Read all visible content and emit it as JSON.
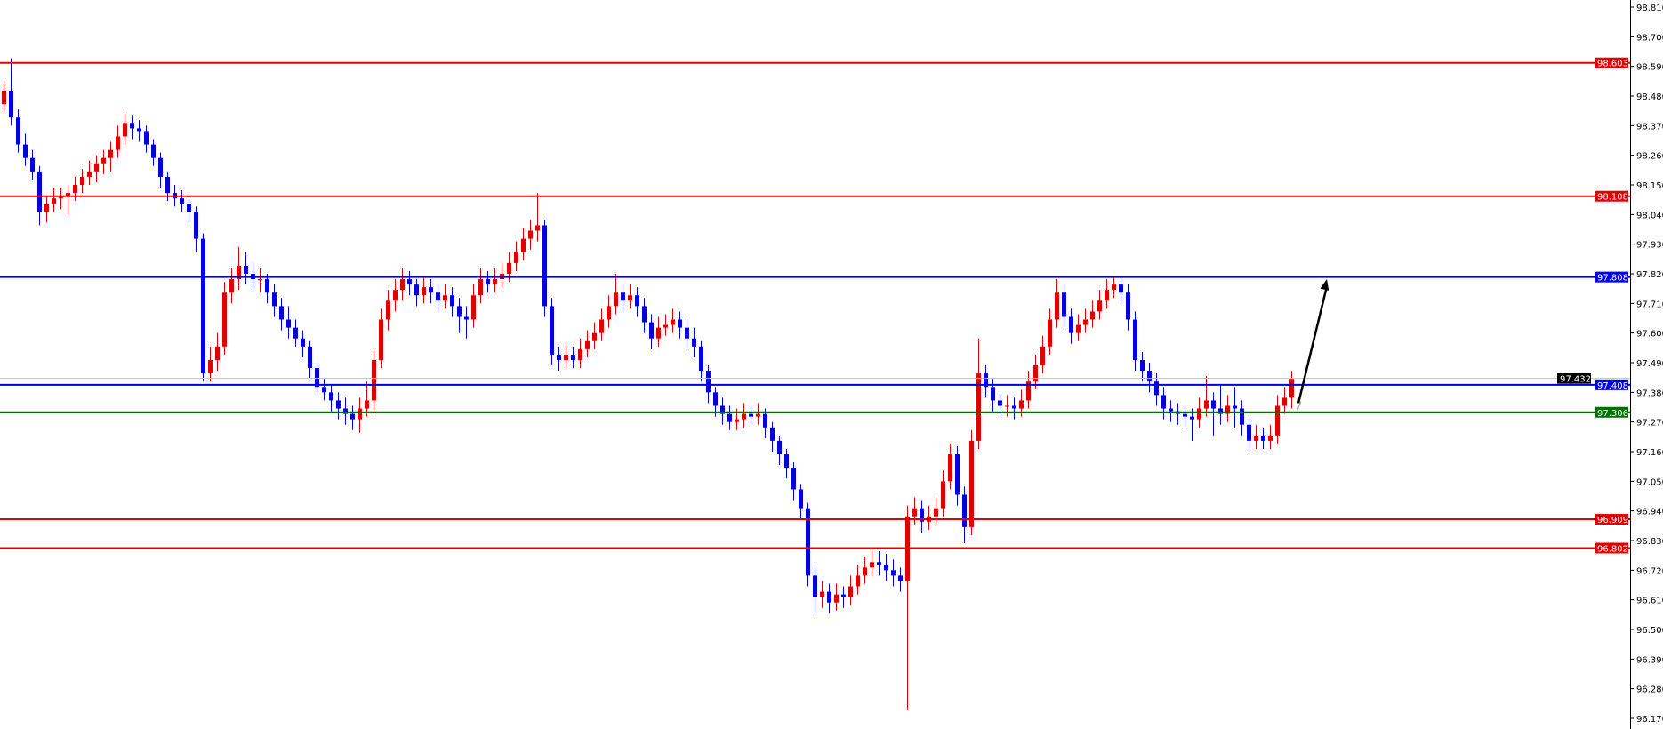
{
  "chart_data": {
    "type": "candlestick",
    "title": "",
    "xlabel": "",
    "ylabel": "",
    "ylim": [
      96.17,
      98.81
    ],
    "y_ticks": [
      "98.810",
      "98.700",
      "98.590",
      "98.480",
      "98.370",
      "98.260",
      "98.150",
      "98.040",
      "97.930",
      "97.820",
      "97.710",
      "97.600",
      "97.490",
      "97.380",
      "97.270",
      "97.160",
      "97.050",
      "96.940",
      "96.830",
      "96.720",
      "96.610",
      "96.500",
      "96.390",
      "96.280",
      "96.170"
    ],
    "grid": false,
    "colors": {
      "up": "#e00000",
      "down": "#0000e0",
      "axis": "#000000",
      "bid_line": "#c0c0c0"
    },
    "horizontal_lines": [
      {
        "price": 98.603,
        "label": "98.603",
        "color": "#e00000"
      },
      {
        "price": 98.108,
        "label": "98.108",
        "color": "#e00000"
      },
      {
        "price": 97.808,
        "label": "97.808",
        "color": "#0000e0"
      },
      {
        "price": 97.408,
        "label": "97.408",
        "color": "#0000e0"
      },
      {
        "price": 97.306,
        "label": "97.306",
        "color": "#007000"
      },
      {
        "price": 96.909,
        "label": "96.909",
        "color": "#e00000"
      },
      {
        "price": 96.802,
        "label": "96.802",
        "color": "#e00000"
      }
    ],
    "bid": {
      "price": 97.432,
      "label": "97.432",
      "color": "#000000"
    },
    "arrow": {
      "from": {
        "index": 182,
        "price": 97.34
      },
      "to": {
        "index": 186,
        "price": 97.8
      },
      "color": "#000000"
    },
    "candles_ohlc": [
      [
        98.45,
        98.53,
        98.42,
        98.5
      ],
      [
        98.5,
        98.62,
        98.37,
        98.4
      ],
      [
        98.4,
        98.43,
        98.27,
        98.3
      ],
      [
        98.3,
        98.34,
        98.22,
        98.25
      ],
      [
        98.25,
        98.28,
        98.17,
        98.2
      ],
      [
        98.2,
        98.22,
        98.0,
        98.05
      ],
      [
        98.05,
        98.11,
        98.01,
        98.08
      ],
      [
        98.08,
        98.14,
        98.05,
        98.1
      ],
      [
        98.1,
        98.14,
        98.06,
        98.11
      ],
      [
        98.11,
        98.15,
        98.04,
        98.12
      ],
      [
        98.12,
        98.18,
        98.09,
        98.15
      ],
      [
        98.15,
        98.21,
        98.12,
        98.18
      ],
      [
        98.18,
        98.24,
        98.15,
        98.2
      ],
      [
        98.2,
        98.26,
        98.16,
        98.23
      ],
      [
        98.23,
        98.28,
        98.19,
        98.25
      ],
      [
        98.25,
        98.31,
        98.2,
        98.28
      ],
      [
        98.28,
        98.37,
        98.25,
        98.33
      ],
      [
        98.33,
        98.42,
        98.3,
        98.38
      ],
      [
        98.38,
        98.41,
        98.32,
        98.36
      ],
      [
        98.36,
        98.39,
        98.31,
        98.35
      ],
      [
        98.35,
        98.37,
        98.27,
        98.3
      ],
      [
        98.3,
        98.32,
        98.22,
        98.25
      ],
      [
        98.25,
        98.27,
        98.14,
        98.18
      ],
      [
        98.18,
        98.2,
        98.09,
        98.12
      ],
      [
        98.12,
        98.15,
        98.07,
        98.1
      ],
      [
        98.1,
        98.13,
        98.05,
        98.08
      ],
      [
        98.08,
        98.1,
        98.01,
        98.05
      ],
      [
        98.05,
        98.07,
        97.9,
        97.95
      ],
      [
        97.95,
        97.97,
        97.42,
        97.45
      ],
      [
        97.45,
        97.55,
        97.42,
        97.5
      ],
      [
        97.5,
        97.6,
        97.46,
        97.55
      ],
      [
        97.55,
        97.79,
        97.52,
        97.75
      ],
      [
        97.75,
        97.84,
        97.71,
        97.8
      ],
      [
        97.8,
        97.92,
        97.76,
        97.85
      ],
      [
        97.85,
        97.9,
        97.78,
        97.82
      ],
      [
        97.82,
        97.86,
        97.76,
        97.8
      ],
      [
        97.8,
        97.84,
        97.75,
        97.8
      ],
      [
        97.8,
        97.82,
        97.71,
        97.75
      ],
      [
        97.75,
        97.78,
        97.66,
        97.7
      ],
      [
        97.7,
        97.73,
        97.61,
        97.65
      ],
      [
        97.65,
        97.7,
        97.58,
        97.62
      ],
      [
        97.62,
        97.65,
        97.55,
        97.58
      ],
      [
        97.58,
        97.61,
        97.51,
        97.55
      ],
      [
        97.55,
        97.57,
        97.43,
        97.47
      ],
      [
        97.47,
        97.49,
        97.37,
        97.4
      ],
      [
        97.4,
        97.43,
        97.35,
        97.38
      ],
      [
        97.38,
        97.41,
        97.31,
        97.35
      ],
      [
        97.35,
        97.38,
        97.28,
        97.32
      ],
      [
        97.32,
        97.36,
        97.26,
        97.3
      ],
      [
        97.3,
        97.33,
        97.24,
        97.28
      ],
      [
        97.28,
        97.36,
        97.23,
        97.32
      ],
      [
        97.32,
        97.42,
        97.29,
        97.35
      ],
      [
        97.35,
        97.54,
        97.3,
        97.5
      ],
      [
        97.5,
        97.69,
        97.47,
        97.65
      ],
      [
        97.65,
        97.76,
        97.61,
        97.72
      ],
      [
        97.72,
        97.8,
        97.68,
        97.76
      ],
      [
        97.76,
        97.84,
        97.72,
        97.8
      ],
      [
        97.8,
        97.83,
        97.74,
        97.78
      ],
      [
        97.78,
        97.8,
        97.7,
        97.74
      ],
      [
        97.74,
        97.81,
        97.71,
        97.77
      ],
      [
        97.77,
        97.8,
        97.71,
        97.75
      ],
      [
        97.75,
        97.78,
        97.68,
        97.72
      ],
      [
        97.72,
        97.78,
        97.69,
        97.74
      ],
      [
        97.74,
        97.77,
        97.66,
        97.7
      ],
      [
        97.7,
        97.73,
        97.6,
        97.66
      ],
      [
        97.66,
        97.7,
        97.58,
        97.65
      ],
      [
        97.65,
        97.78,
        97.62,
        97.74
      ],
      [
        97.74,
        97.84,
        97.71,
        97.8
      ],
      [
        97.8,
        97.83,
        97.75,
        97.78
      ],
      [
        97.78,
        97.84,
        97.75,
        97.8
      ],
      [
        97.8,
        97.86,
        97.77,
        97.82
      ],
      [
        97.82,
        97.9,
        97.79,
        97.86
      ],
      [
        97.86,
        97.94,
        97.83,
        97.9
      ],
      [
        97.9,
        97.99,
        97.87,
        97.95
      ],
      [
        97.95,
        98.02,
        97.91,
        97.98
      ],
      [
        97.98,
        98.12,
        97.94,
        98.0
      ],
      [
        98.0,
        98.02,
        97.66,
        97.7
      ],
      [
        97.7,
        97.73,
        97.48,
        97.52
      ],
      [
        97.52,
        97.55,
        97.46,
        97.5
      ],
      [
        97.5,
        97.56,
        97.47,
        97.52
      ],
      [
        97.52,
        97.55,
        97.47,
        97.5
      ],
      [
        97.5,
        97.58,
        97.47,
        97.54
      ],
      [
        97.54,
        97.61,
        97.51,
        97.57
      ],
      [
        97.57,
        97.64,
        97.54,
        97.6
      ],
      [
        97.6,
        97.69,
        97.57,
        97.65
      ],
      [
        97.65,
        97.74,
        97.62,
        97.7
      ],
      [
        97.7,
        97.82,
        97.67,
        97.75
      ],
      [
        97.75,
        97.78,
        97.68,
        97.72
      ],
      [
        97.72,
        97.78,
        97.69,
        97.74
      ],
      [
        97.74,
        97.77,
        97.66,
        97.7
      ],
      [
        97.7,
        97.73,
        97.6,
        97.64
      ],
      [
        97.64,
        97.67,
        97.54,
        97.58
      ],
      [
        97.58,
        97.66,
        97.55,
        97.62
      ],
      [
        97.62,
        97.67,
        97.59,
        97.63
      ],
      [
        97.63,
        97.69,
        97.6,
        97.65
      ],
      [
        97.65,
        97.68,
        97.58,
        97.62
      ],
      [
        97.62,
        97.65,
        97.54,
        97.58
      ],
      [
        97.58,
        97.62,
        97.51,
        97.55
      ],
      [
        97.55,
        97.57,
        97.42,
        97.46
      ],
      [
        97.46,
        97.48,
        97.34,
        97.38
      ],
      [
        97.38,
        97.4,
        97.29,
        97.33
      ],
      [
        97.33,
        97.36,
        97.26,
        97.3
      ],
      [
        97.3,
        97.33,
        97.24,
        97.27
      ],
      [
        97.27,
        97.32,
        97.24,
        97.28
      ],
      [
        97.28,
        97.34,
        97.25,
        97.3
      ],
      [
        97.3,
        97.33,
        97.26,
        97.29
      ],
      [
        97.29,
        97.34,
        97.26,
        97.3
      ],
      [
        97.3,
        97.32,
        97.21,
        97.25
      ],
      [
        97.25,
        97.27,
        97.16,
        97.2
      ],
      [
        97.2,
        97.22,
        97.11,
        97.15
      ],
      [
        97.15,
        97.17,
        97.06,
        97.1
      ],
      [
        97.1,
        97.12,
        96.98,
        97.02
      ],
      [
        97.02,
        97.04,
        96.91,
        96.95
      ],
      [
        96.95,
        96.97,
        96.66,
        96.7
      ],
      [
        96.7,
        96.73,
        96.56,
        96.62
      ],
      [
        96.62,
        96.68,
        96.58,
        96.64
      ],
      [
        96.64,
        96.67,
        96.56,
        96.6
      ],
      [
        96.6,
        96.67,
        96.57,
        96.63
      ],
      [
        96.63,
        96.66,
        96.58,
        96.62
      ],
      [
        96.62,
        96.7,
        96.59,
        96.66
      ],
      [
        96.66,
        96.74,
        96.63,
        96.7
      ],
      [
        96.7,
        96.77,
        96.67,
        96.73
      ],
      [
        96.73,
        96.8,
        96.7,
        96.75
      ],
      [
        96.75,
        96.79,
        96.7,
        96.74
      ],
      [
        96.74,
        96.78,
        96.68,
        96.72
      ],
      [
        96.72,
        96.76,
        96.66,
        96.7
      ],
      [
        96.7,
        96.73,
        96.64,
        96.68
      ],
      [
        96.68,
        96.96,
        96.2,
        96.92
      ],
      [
        96.92,
        96.99,
        96.89,
        96.95
      ],
      [
        96.95,
        96.98,
        96.86,
        96.9
      ],
      [
        96.9,
        96.96,
        96.87,
        96.92
      ],
      [
        96.92,
        96.99,
        96.89,
        96.95
      ],
      [
        96.95,
        97.09,
        96.92,
        97.05
      ],
      [
        97.05,
        97.19,
        97.02,
        97.15
      ],
      [
        97.15,
        97.18,
        96.96,
        97.0
      ],
      [
        97.0,
        97.03,
        96.82,
        96.88
      ],
      [
        96.88,
        97.24,
        96.85,
        97.2
      ],
      [
        97.2,
        97.58,
        97.17,
        97.45
      ],
      [
        97.45,
        97.48,
        97.36,
        97.4
      ],
      [
        97.4,
        97.43,
        97.31,
        97.35
      ],
      [
        97.35,
        97.38,
        97.29,
        97.33
      ],
      [
        97.33,
        97.37,
        97.29,
        97.33
      ],
      [
        97.33,
        97.36,
        97.28,
        97.32
      ],
      [
        97.32,
        97.39,
        97.29,
        97.35
      ],
      [
        97.35,
        97.46,
        97.32,
        97.42
      ],
      [
        97.42,
        97.52,
        97.39,
        97.48
      ],
      [
        97.48,
        97.59,
        97.45,
        97.55
      ],
      [
        97.55,
        97.69,
        97.52,
        97.65
      ],
      [
        97.65,
        97.8,
        97.62,
        97.75
      ],
      [
        97.75,
        97.78,
        97.62,
        97.66
      ],
      [
        97.66,
        97.69,
        97.56,
        97.6
      ],
      [
        97.6,
        97.67,
        97.57,
        97.63
      ],
      [
        97.63,
        97.69,
        97.6,
        97.65
      ],
      [
        97.65,
        97.72,
        97.62,
        97.68
      ],
      [
        97.68,
        97.76,
        97.65,
        97.72
      ],
      [
        97.72,
        97.8,
        97.69,
        97.76
      ],
      [
        97.76,
        97.81,
        97.73,
        97.78
      ],
      [
        97.78,
        97.81,
        97.71,
        97.75
      ],
      [
        97.75,
        97.78,
        97.61,
        97.65
      ],
      [
        97.65,
        97.68,
        97.46,
        97.5
      ],
      [
        97.5,
        97.53,
        97.42,
        97.46
      ],
      [
        97.46,
        97.49,
        97.38,
        97.42
      ],
      [
        97.42,
        97.45,
        97.33,
        97.37
      ],
      [
        97.37,
        97.4,
        97.28,
        97.32
      ],
      [
        97.32,
        97.35,
        97.27,
        97.31
      ],
      [
        97.31,
        97.34,
        97.26,
        97.3
      ],
      [
        97.3,
        97.33,
        97.25,
        97.29
      ],
      [
        97.29,
        97.32,
        97.2,
        97.28
      ],
      [
        97.28,
        97.36,
        97.25,
        97.32
      ],
      [
        97.32,
        97.44,
        97.29,
        97.35
      ],
      [
        97.35,
        97.38,
        97.22,
        97.32
      ],
      [
        97.32,
        97.41,
        97.26,
        97.3
      ],
      [
        97.3,
        97.37,
        97.27,
        97.33
      ],
      [
        97.33,
        97.4,
        97.25,
        97.32
      ],
      [
        97.32,
        97.35,
        97.22,
        97.26
      ],
      [
        97.26,
        97.29,
        97.17,
        97.2
      ],
      [
        97.2,
        97.26,
        97.17,
        97.22
      ],
      [
        97.22,
        97.25,
        97.17,
        97.2
      ],
      [
        97.2,
        97.26,
        97.17,
        97.22
      ],
      [
        97.22,
        97.37,
        97.19,
        97.33
      ],
      [
        97.33,
        97.4,
        97.3,
        97.36
      ],
      [
        97.36,
        97.46,
        97.32,
        97.43
      ]
    ]
  }
}
